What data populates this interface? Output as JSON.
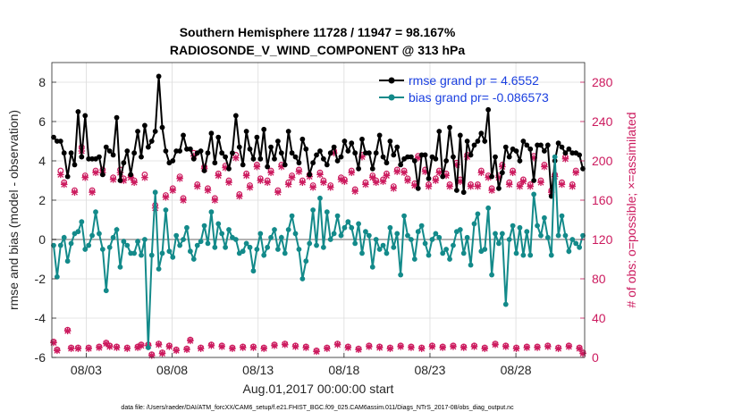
{
  "chart_data": {
    "type": "line",
    "title": "Southern Hemisphere 11728 / 11947 = 98.167%",
    "subtitle": "RADIOSONDE_V_WIND_COMPONENT @ 313 hPa",
    "xlabel": "Aug.01,2017 00:00:00 start",
    "ylabel_left": "rmse and bias (model - observation)",
    "ylabel_right": "# of obs: o=possible; ×=assimilated",
    "footnote": "data file: /Users/raeder/DAI/ATM_forcXX/CAM6_setup/f.e21.FHIST_BGC.f09_025.CAM6assim.011/Diags_NTrS_2017-08/obs_diag_output.nc",
    "x_range": [
      1,
      32
    ],
    "x_ticks": [
      {
        "day": 3,
        "label": "08/03"
      },
      {
        "day": 8,
        "label": "08/08"
      },
      {
        "day": 13,
        "label": "08/13"
      },
      {
        "day": 18,
        "label": "08/18"
      },
      {
        "day": 23,
        "label": "08/23"
      },
      {
        "day": 28,
        "label": "08/28"
      }
    ],
    "ylim_left": [
      -6,
      9
    ],
    "yticks_left": [
      "-6",
      "-4",
      "-2",
      "0",
      "2",
      "4",
      "6",
      "8"
    ],
    "ylim_right": [
      0,
      300
    ],
    "yticks_right": [
      "0",
      "40",
      "80",
      "120",
      "160",
      "200",
      "240",
      "280"
    ],
    "grid": true,
    "legend": [
      {
        "name": "rmse grand pr = 4.6552",
        "color": "#000000"
      },
      {
        "name": "bias grand pr= -0.086573",
        "color": "#138a8a"
      }
    ],
    "series": [
      {
        "name": "rmse",
        "color": "#000000",
        "values": [
          5.2,
          5.0,
          5.0,
          4.4,
          3.2,
          4.4,
          3.8,
          6.5,
          4.2,
          6.3,
          4.1,
          4.1,
          4.1,
          4.2,
          3.3,
          4.7,
          4.5,
          4.3,
          6.2,
          3.0,
          3.9,
          4.5,
          3.3,
          4.4,
          5.5,
          4.2,
          5.8,
          4.7,
          5.0,
          5.5,
          8.3,
          5.7,
          4.5,
          3.9,
          4.0,
          4.5,
          4.5,
          5.3,
          4.6,
          4.6,
          4.1,
          4.4,
          4.5,
          3.5,
          4.4,
          5.4,
          3.9,
          5.2,
          4.4,
          4.2,
          3.6,
          4.4,
          6.3,
          4.7,
          3.8,
          5.5,
          4.6,
          4.1,
          5.2,
          4.1,
          5.6,
          3.7,
          4.7,
          4.1,
          5.0,
          4.4,
          3.8,
          5.5,
          4.4,
          4.2,
          3.9,
          5.1,
          4.6,
          3.3,
          3.9,
          4.3,
          4.5,
          4.1,
          3.8,
          4.4,
          4.7,
          4.0,
          4.2,
          5.0,
          4.5,
          4.9,
          4.4,
          3.6,
          5.1,
          4.4,
          4.4,
          3.6,
          4.4,
          5.3,
          4.2,
          3.9,
          5.0,
          4.3,
          4.7,
          3.8,
          4.1,
          4.2,
          4.2,
          4.0,
          2.6,
          4.3,
          4.3,
          3.1,
          4.2,
          4.1,
          5.5,
          3.2,
          4.0,
          5.7,
          4.2,
          2.5,
          5.3,
          2.4,
          5.0,
          4.3,
          4.8,
          5.0,
          5.4,
          5.0,
          6.6,
          3.2,
          4.2,
          2.6,
          3.4,
          4.7,
          4.2,
          4.6,
          4.5,
          4.0,
          5.0,
          4.8,
          4.6,
          3.0,
          4.8,
          4.8,
          4.5,
          4.8,
          2.2,
          4.0,
          4.9,
          4.7,
          4.4,
          4.6,
          4.4,
          4.4,
          4.3,
          3.6
        ]
      },
      {
        "name": "bias",
        "color": "#138a8a",
        "values": [
          -0.3,
          -1.9,
          -0.3,
          0.1,
          -1.1,
          -0.2,
          0.3,
          0.4,
          0.9,
          -0.5,
          -0.3,
          0.2,
          1.4,
          0.3,
          -0.5,
          -2.6,
          -0.4,
          0.1,
          0.5,
          -1.4,
          -0.1,
          -0.3,
          -0.7,
          -0.7,
          -0.1,
          -0.8,
          0.0,
          -5.5,
          -0.8,
          2.4,
          -1.5,
          -0.7,
          1.5,
          -0.6,
          -0.9,
          0.2,
          -0.3,
          0.0,
          0.6,
          -0.6,
          -1.0,
          -0.3,
          -0.1,
          0.7,
          -0.2,
          1.4,
          -0.4,
          0.8,
          0.3,
          -0.4,
          0.5,
          0.1,
          0.0,
          -0.7,
          -0.6,
          -0.2,
          -0.4,
          -1.6,
          -0.5,
          0.3,
          -0.8,
          -0.4,
          0.1,
          0.5,
          -0.5,
          0.1,
          -0.7,
          0.5,
          1.2,
          0.3,
          -0.5,
          -2.0,
          -1.1,
          -0.2,
          1.5,
          -0.3,
          2.1,
          -0.4,
          1.4,
          0.0,
          0.3,
          1.2,
          0.2,
          0.6,
          0.9,
          0.6,
          -0.2,
          0.8,
          -0.7,
          0.4,
          0.2,
          -1.4,
          0.0,
          -0.5,
          -0.3,
          -0.7,
          0.6,
          -0.4,
          0.3,
          -1.8,
          1.2,
          0.2,
          0.0,
          -1.0,
          0.4,
          0.7,
          -0.2,
          -0.8,
          0.0,
          0.3,
          0.1,
          -0.7,
          -0.5,
          -1.0,
          -0.3,
          0.4,
          0.5,
          -0.7,
          0.1,
          -1.3,
          0.8,
          1.3,
          -0.6,
          -0.5,
          1.6,
          -1.8,
          0.3,
          -0.2,
          0.3,
          -3.3,
          0.0,
          0.7,
          -0.7,
          0.6,
          -0.8,
          0.4,
          -0.8,
          2.3,
          0.7,
          0.2,
          1.1,
          0.1,
          -0.8,
          4.2,
          0.2,
          1.2,
          0.2,
          -0.6,
          0.0,
          -0.2,
          -0.4,
          0.2
        ]
      },
      {
        "name": "possible",
        "axis": "right",
        "color": "#cc1a5e",
        "marker": "o",
        "values": [
          16,
          8,
          190,
          178,
          28,
          10,
          170,
          10,
          214,
          185,
          10,
          170,
          190,
          11,
          191,
          15,
          12,
          183,
          11,
          191,
          182,
          10,
          185,
          180,
          11,
          13,
          186,
          13,
          3,
          155,
          14,
          5,
          165,
          12,
          172,
          8,
          184,
          162,
          9,
          18,
          208,
          176,
          10,
          194,
          172,
          13,
          162,
          187,
          12,
          195,
          180,
          10,
          206,
          166,
          11,
          187,
          175,
          11,
          196,
          182,
          10,
          180,
          190,
          13,
          170,
          196,
          14,
          178,
          185,
          12,
          191,
          180,
          11,
          186,
          175,
          7,
          188,
          180,
          10,
          175,
          210,
          14,
          183,
          181,
          11,
          190,
          171,
          9,
          206,
          178,
          12,
          185,
          180,
          11,
          181,
          187,
          10,
          174,
          191,
          12,
          190,
          182,
          11,
          177,
          205,
          10,
          191,
          176,
          12,
          182,
          190,
          11,
          187,
          176,
          12,
          198,
          181,
          11,
          206,
          176,
          12,
          176,
          190,
          10,
          185,
          172,
          14,
          185,
          196,
          12,
          178,
          190,
          10,
          176,
          181,
          11,
          176,
          205,
          11,
          180,
          196,
          12,
          170,
          186,
          10,
          178,
          204,
          12,
          176,
          190,
          10,
          5
        ]
      },
      {
        "name": "assimilated",
        "axis": "right",
        "color": "#cc1a5e",
        "marker": "x",
        "values": [
          15,
          7,
          186,
          176,
          27,
          9,
          168,
          9,
          210,
          183,
          9,
          168,
          188,
          10,
          188,
          14,
          11,
          181,
          10,
          188,
          180,
          9,
          183,
          178,
          10,
          12,
          183,
          12,
          2,
          152,
          13,
          4,
          163,
          11,
          170,
          7,
          182,
          160,
          8,
          17,
          205,
          174,
          9,
          192,
          170,
          12,
          160,
          185,
          11,
          193,
          178,
          9,
          203,
          164,
          10,
          185,
          173,
          10,
          194,
          180,
          9,
          178,
          188,
          12,
          168,
          194,
          13,
          176,
          183,
          11,
          189,
          178,
          10,
          184,
          173,
          6,
          186,
          178,
          9,
          173,
          208,
          13,
          181,
          179,
          10,
          188,
          169,
          8,
          204,
          176,
          11,
          183,
          178,
          10,
          179,
          185,
          9,
          172,
          189,
          11,
          188,
          180,
          10,
          175,
          203,
          9,
          189,
          174,
          11,
          180,
          188,
          10,
          185,
          174,
          11,
          196,
          179,
          10,
          204,
          174,
          11,
          174,
          188,
          9,
          183,
          170,
          13,
          183,
          194,
          11,
          176,
          188,
          9,
          174,
          179,
          10,
          174,
          203,
          10,
          178,
          194,
          11,
          168,
          184,
          9,
          176,
          202,
          11,
          174,
          188,
          9,
          4
        ]
      }
    ]
  }
}
